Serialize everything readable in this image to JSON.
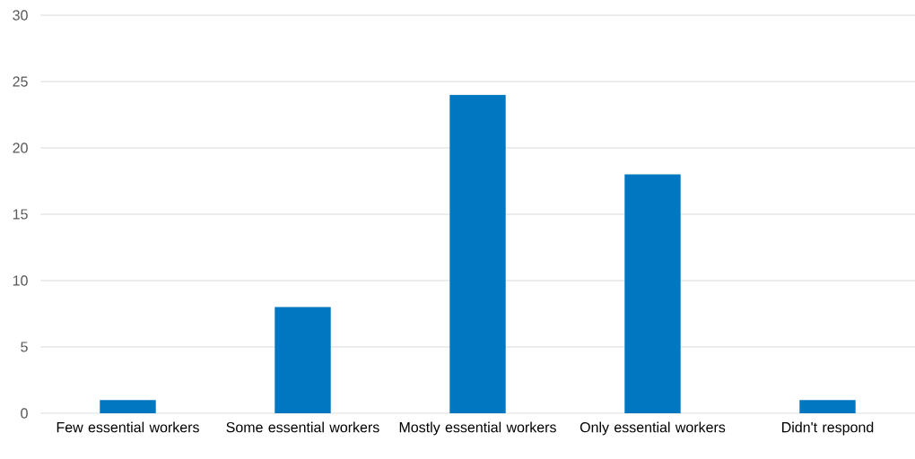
{
  "chart_data": {
    "type": "bar",
    "categories": [
      "Few essential workers",
      "Some essential workers",
      "Mostly essential workers",
      "Only essential workers",
      "Didn't respond"
    ],
    "values": [
      1,
      8,
      24,
      18,
      1
    ],
    "color": "#0077c0",
    "ylim": [
      0,
      30
    ],
    "yticks": [
      0,
      5,
      10,
      15,
      20,
      25,
      30
    ],
    "grid": "y"
  }
}
